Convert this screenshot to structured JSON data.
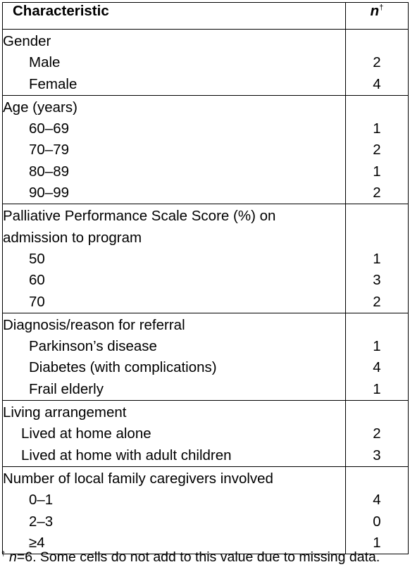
{
  "header": {
    "characteristic": "Characteristic",
    "n": "n",
    "n_mark": "†"
  },
  "groups": [
    {
      "title": "Gender",
      "rows": [
        {
          "label": "Male",
          "value": "2"
        },
        {
          "label": "Female",
          "value": "4"
        }
      ]
    },
    {
      "title": "Age (years)",
      "rows": [
        {
          "label": "60–69",
          "value": "1"
        },
        {
          "label": "70–79",
          "value": "2"
        },
        {
          "label": "80–89",
          "value": "1"
        },
        {
          "label": "90–99",
          "value": "2"
        }
      ]
    },
    {
      "title": "Palliative Performance Scale Score (%) on",
      "title2": "admission to program",
      "rows": [
        {
          "label": "50",
          "value": "1"
        },
        {
          "label": "60",
          "value": "3"
        },
        {
          "label": "70",
          "value": "2"
        }
      ]
    },
    {
      "title": "Diagnosis/reason for referral",
      "rows": [
        {
          "label": "Parkinson’s disease",
          "value": "1"
        },
        {
          "label": "Diabetes (with complications)",
          "value": "4"
        },
        {
          "label": "Frail elderly",
          "value": "1"
        }
      ]
    },
    {
      "title": "Living arrangement",
      "rows": [
        {
          "label": "Lived at home alone",
          "value": "2"
        },
        {
          "label": "Lived at home with adult children",
          "value": "3"
        }
      ]
    },
    {
      "title": "Number of local family caregivers involved",
      "rows": [
        {
          "label": "0–1",
          "value": "4"
        },
        {
          "label": "2–3",
          "value": "0"
        },
        {
          "label": "≥4",
          "value": "1"
        }
      ]
    }
  ],
  "footnote": {
    "mark": "†",
    "n": "n",
    "text": "=6. Some cells do not add to this value due to missing data."
  }
}
